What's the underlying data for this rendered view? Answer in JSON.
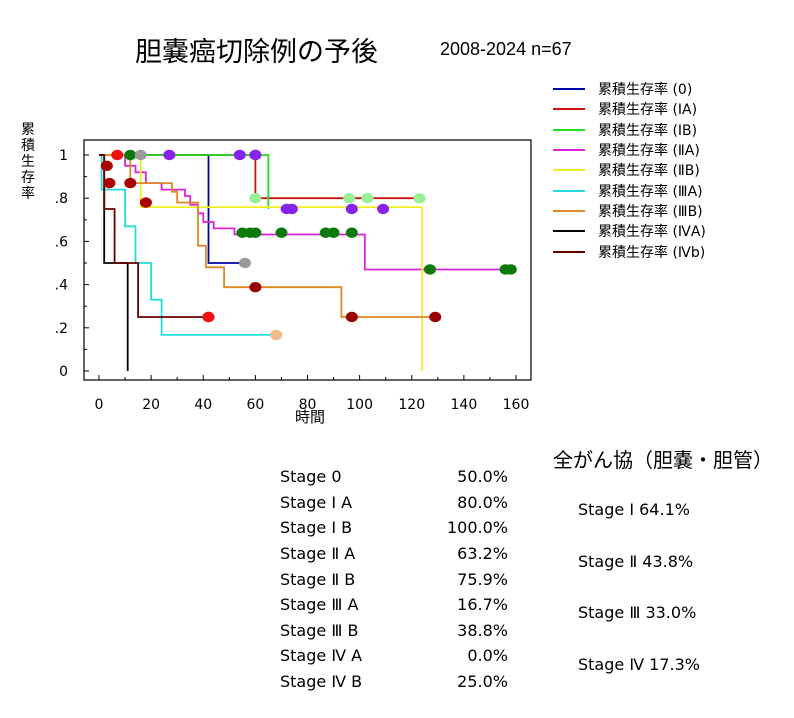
{
  "title": "胆嚢癌切除例の予後",
  "subtitle": "2008-2024 n=67",
  "chart_data": {
    "type": "line",
    "xlabel": "時間",
    "ylabel": "累積生存率",
    "xlim": [
      -5,
      160
    ],
    "ylim": [
      0,
      1
    ],
    "xticks": [
      0,
      20,
      40,
      60,
      80,
      100,
      120,
      140,
      160
    ],
    "yticks": [
      {
        "v": 0,
        "label": "0"
      },
      {
        "v": 0.2,
        "label": ".2"
      },
      {
        "v": 0.4,
        "label": ".4"
      },
      {
        "v": 0.6,
        "label": ".6"
      },
      {
        "v": 0.8,
        "label": ".8"
      },
      {
        "v": 1,
        "label": "1"
      }
    ],
    "series": [
      {
        "name": "累積生存率 (0)",
        "color": "#0000aa",
        "censor_color": "#999999",
        "steps": [
          [
            0,
            1
          ],
          [
            42,
            1
          ],
          [
            42,
            0.5
          ],
          [
            56,
            0.5
          ]
        ],
        "censored": [
          [
            56,
            0.5
          ]
        ]
      },
      {
        "name": "累積生存率 (ⅠA)",
        "color": "#cc1111",
        "censor_color": "#ee1111",
        "steps": [
          [
            0,
            1
          ],
          [
            60,
            1
          ],
          [
            60,
            0.8
          ],
          [
            123,
            0.8
          ]
        ],
        "censored": [
          [
            7,
            1
          ]
        ]
      },
      {
        "name": "累積生存率 (ⅠB)",
        "color": "#22dd22",
        "censor_color": "#0b7a0b",
        "steps": [
          [
            0,
            1
          ],
          [
            65,
            1
          ],
          [
            65,
            0.75
          ]
        ],
        "censored": [
          [
            12,
            1
          ],
          [
            60,
            1
          ]
        ]
      },
      {
        "name": "累積生存率 (ⅡA)",
        "color": "#dd22dd",
        "censor_color": "#8822ee",
        "steps": [
          [
            0,
            1
          ],
          [
            10,
            1
          ],
          [
            10,
            0.95
          ],
          [
            14,
            0.95
          ],
          [
            14,
            0.92
          ],
          [
            18,
            0.92
          ],
          [
            18,
            0.87
          ],
          [
            24,
            0.87
          ],
          [
            24,
            0.84
          ],
          [
            33,
            0.84
          ],
          [
            33,
            0.81
          ],
          [
            35,
            0.81
          ],
          [
            35,
            0.77
          ],
          [
            38,
            0.77
          ],
          [
            38,
            0.73
          ],
          [
            40,
            0.73
          ],
          [
            40,
            0.69
          ],
          [
            44,
            0.69
          ],
          [
            44,
            0.66
          ],
          [
            52,
            0.66
          ],
          [
            52,
            0.632
          ],
          [
            102,
            0.632
          ],
          [
            102,
            0.47
          ],
          [
            156,
            0.47
          ]
        ],
        "censored": [
          [
            27,
            1
          ],
          [
            54,
            1
          ],
          [
            60,
            1
          ],
          [
            72,
            0.75
          ],
          [
            74,
            0.75
          ],
          [
            97,
            0.75
          ],
          [
            109,
            0.75
          ]
        ]
      },
      {
        "name": "累積生存率 (ⅡB)",
        "color": "#eeee22",
        "censor_color": "#99ee99",
        "steps": [
          [
            0,
            1
          ],
          [
            16,
            1
          ],
          [
            16,
            0.759
          ],
          [
            124,
            0.759
          ],
          [
            124,
            0
          ]
        ],
        "censored": [
          [
            60,
            0.8
          ],
          [
            96,
            0.8
          ],
          [
            103,
            0.8
          ],
          [
            123,
            0.8
          ]
        ]
      },
      {
        "name": "累積生存率 (ⅢA)",
        "color": "#22dddd",
        "censor_color": "#f0bb88",
        "steps": [
          [
            0,
            1
          ],
          [
            1,
            1
          ],
          [
            1,
            0.84
          ],
          [
            10,
            0.84
          ],
          [
            10,
            0.67
          ],
          [
            14,
            0.67
          ],
          [
            14,
            0.5
          ],
          [
            20,
            0.5
          ],
          [
            20,
            0.33
          ],
          [
            24,
            0.33
          ],
          [
            24,
            0.167
          ],
          [
            68,
            0.167
          ]
        ],
        "censored": [
          [
            68,
            0.167
          ]
        ]
      },
      {
        "name": "累積生存率 (ⅢB)",
        "color": "#dd8822",
        "censor_color": "#990000",
        "steps": [
          [
            0,
            1
          ],
          [
            12,
            1
          ],
          [
            12,
            0.87
          ],
          [
            28,
            0.87
          ],
          [
            28,
            0.83
          ],
          [
            30,
            0.83
          ],
          [
            30,
            0.78
          ],
          [
            38,
            0.78
          ],
          [
            38,
            0.58
          ],
          [
            41,
            0.58
          ],
          [
            41,
            0.48
          ],
          [
            48,
            0.48
          ],
          [
            48,
            0.388
          ],
          [
            93,
            0.388
          ],
          [
            93,
            0.25
          ],
          [
            129,
            0.25
          ]
        ],
        "censored": [
          [
            60,
            0.388
          ],
          [
            97,
            0.25
          ],
          [
            129,
            0.25
          ]
        ]
      },
      {
        "name": "累積生存率 (ⅣA)",
        "color": "#000000",
        "censor_color": "#000000",
        "steps": [
          [
            0,
            1
          ],
          [
            2,
            1
          ],
          [
            2,
            0.5
          ],
          [
            11,
            0.5
          ],
          [
            11,
            0
          ]
        ],
        "censored": []
      },
      {
        "name": "累積生存率 (Ⅳb)",
        "color": "#660000",
        "censor_color": "#aa0000",
        "steps": [
          [
            0,
            1
          ],
          [
            2,
            1
          ],
          [
            2,
            0.75
          ],
          [
            6,
            0.75
          ],
          [
            6,
            0.5
          ],
          [
            15,
            0.5
          ],
          [
            15,
            0.25
          ],
          [
            42,
            0.25
          ]
        ],
        "censored": [
          [
            3,
            0.95
          ],
          [
            4,
            0.87
          ],
          [
            12,
            0.87
          ],
          [
            18,
            0.78
          ],
          [
            42,
            0.25
          ]
        ]
      }
    ],
    "extra_censored": [
      {
        "color": "#0b7a0b",
        "points": [
          [
            55,
            0.64
          ],
          [
            58,
            0.64
          ],
          [
            60,
            0.64
          ],
          [
            70,
            0.64
          ],
          [
            87,
            0.64
          ],
          [
            90,
            0.64
          ],
          [
            97,
            0.64
          ],
          [
            127,
            0.47
          ],
          [
            156,
            0.47
          ],
          [
            158,
            0.47
          ]
        ]
      },
      {
        "color": "#999999",
        "points": [
          [
            16,
            1
          ]
        ]
      },
      {
        "color": "#ee1111",
        "points": [
          [
            42,
            0.25
          ]
        ]
      }
    ]
  },
  "stages": [
    {
      "name": "Stage 0",
      "value": "50.0%"
    },
    {
      "name": "Stage Ⅰ A",
      "value": "80.0%"
    },
    {
      "name": "Stage Ⅰ B",
      "value": "100.0%"
    },
    {
      "name": "Stage Ⅱ A",
      "value": "63.2%"
    },
    {
      "name": "Stage Ⅱ B",
      "value": "75.9%"
    },
    {
      "name": "Stage Ⅲ A",
      "value": "16.7%"
    },
    {
      "name": "Stage Ⅲ B",
      "value": "38.8%"
    },
    {
      "name": "Stage Ⅳ A",
      "value": "0.0%"
    },
    {
      "name": "Stage Ⅳ B",
      "value": "25.0%"
    }
  ],
  "reference": {
    "title": "全がん協（胆嚢・胆管）",
    "rows": [
      {
        "label": "Stage Ⅰ 64.1%"
      },
      {
        "label": "Stage Ⅱ 43.8%"
      },
      {
        "label": "Stage Ⅲ 33.0%"
      },
      {
        "label": "Stage Ⅳ 17.3%"
      }
    ]
  }
}
